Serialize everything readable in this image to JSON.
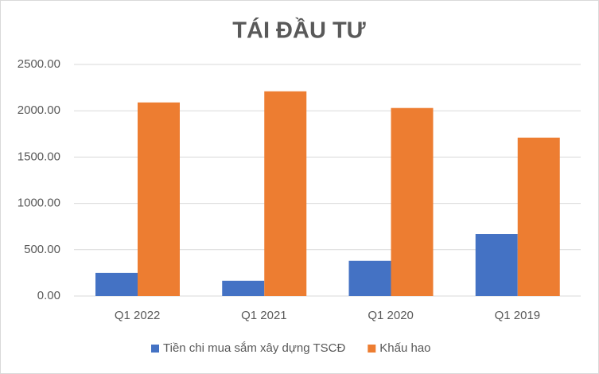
{
  "chart_data": {
    "type": "bar",
    "title": "TÁI ĐẦU TƯ",
    "categories": [
      "Q1 2022",
      "Q1 2021",
      "Q1 2020",
      "Q1 2019"
    ],
    "series": [
      {
        "name": "Tiền chi mua sắm xây dựng TSCĐ",
        "color": "#4472c4",
        "values": [
          250,
          165,
          380,
          670
        ]
      },
      {
        "name": "Khấu hao",
        "color": "#ed7d31",
        "values": [
          2090,
          2210,
          2030,
          1710
        ]
      }
    ],
    "ylim": [
      0,
      2500
    ],
    "yticks": [
      {
        "value": 0,
        "label": "0.00"
      },
      {
        "value": 500,
        "label": "500.00"
      },
      {
        "value": 1000,
        "label": "1000.00"
      },
      {
        "value": 1500,
        "label": "1500.00"
      },
      {
        "value": 2000,
        "label": "2000.00"
      },
      {
        "value": 2500,
        "label": "2500.00"
      }
    ],
    "grid": true,
    "legend": "bottom"
  }
}
